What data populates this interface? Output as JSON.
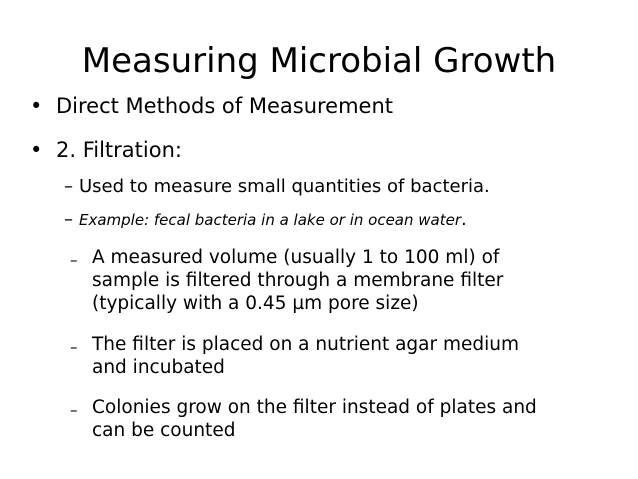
{
  "slide": {
    "title": "Measuring Microbial Growth",
    "bullets": [
      {
        "marker": "•",
        "text": "Direct Methods of Measurement"
      },
      {
        "marker": "•",
        "text": "2. Filtration:"
      }
    ],
    "sub_bullets": [
      {
        "marker": "–",
        "text": "Used to measure small quantities of bacteria."
      },
      {
        "marker": "–",
        "text": "Example: fecal bacteria in a lake or in ocean water",
        "suffix": "."
      }
    ],
    "sub_sub_bullets": [
      {
        "marker": "–",
        "lines": [
          "A measured volume (usually 1 to 100 ml) of",
          "sample is filtered through a membrane filter",
          "(typically with a 0.45 µm pore size)"
        ]
      },
      {
        "marker": "–",
        "lines": [
          "The filter is placed on a nutrient agar medium",
          "and incubated"
        ]
      },
      {
        "marker": "–",
        "lines": [
          "Colonies grow on the filter instead of plates and",
          "can be counted"
        ]
      }
    ]
  }
}
